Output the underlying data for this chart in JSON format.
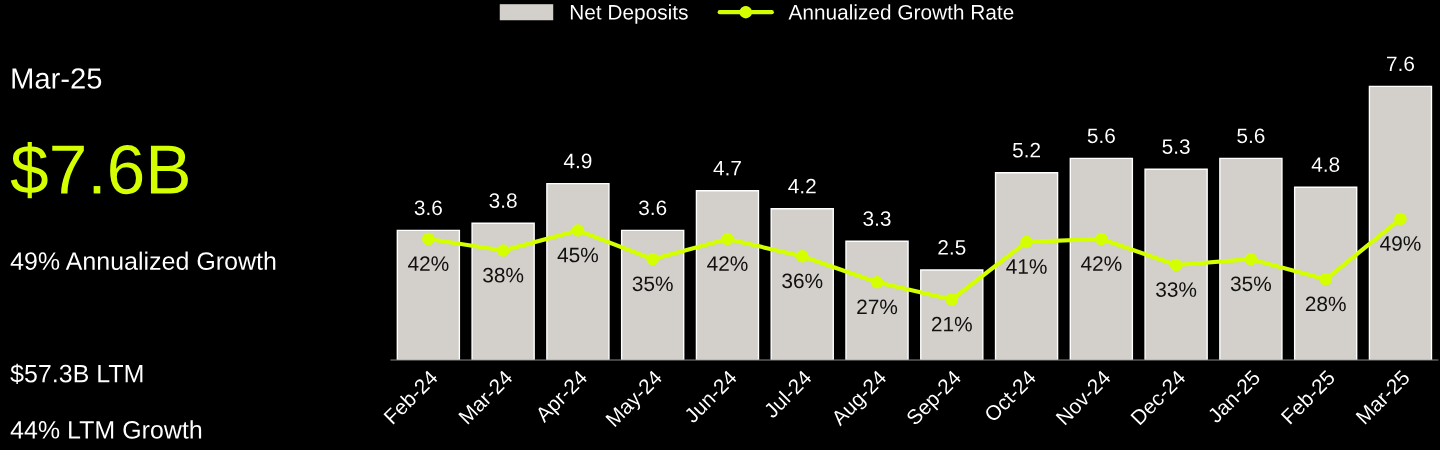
{
  "chart_data": {
    "type": "bar",
    "categories": [
      "Feb-24",
      "Mar-24",
      "Apr-24",
      "May-24",
      "Jun-24",
      "Jul-24",
      "Aug-24",
      "Sep-24",
      "Oct-24",
      "Nov-24",
      "Dec-24",
      "Jan-25",
      "Feb-25",
      "Mar-25"
    ],
    "series": [
      {
        "name": "Net Deposits",
        "color": "#d3cfca",
        "values": [
          3.6,
          3.8,
          4.9,
          3.6,
          4.7,
          4.2,
          3.3,
          2.5,
          5.2,
          5.6,
          5.3,
          5.6,
          4.8,
          7.6
        ]
      },
      {
        "name": "Annualized Growth Rate",
        "type": "line",
        "axis": "y2",
        "color": "#d4ff00",
        "values": [
          42,
          38,
          45,
          35,
          42,
          36,
          27,
          21,
          41,
          42,
          33,
          35,
          28,
          49
        ],
        "value_labels": [
          "42%",
          "38%",
          "45%",
          "35%",
          "42%",
          "36%",
          "27%",
          "21%",
          "41%",
          "42%",
          "33%",
          "35%",
          "28%",
          "49%"
        ]
      }
    ],
    "ylim": [
      0,
      10
    ],
    "y2lim": [
      0,
      125
    ],
    "data_labels": true,
    "tick_labels": "x",
    "legend": "top",
    "marker": "circle",
    "grid": false,
    "annotations": [
      "Mar-25",
      "$7.6B",
      "49% Annualized Growth",
      "$57.3B LTM",
      "44% LTM Growth"
    ]
  }
}
